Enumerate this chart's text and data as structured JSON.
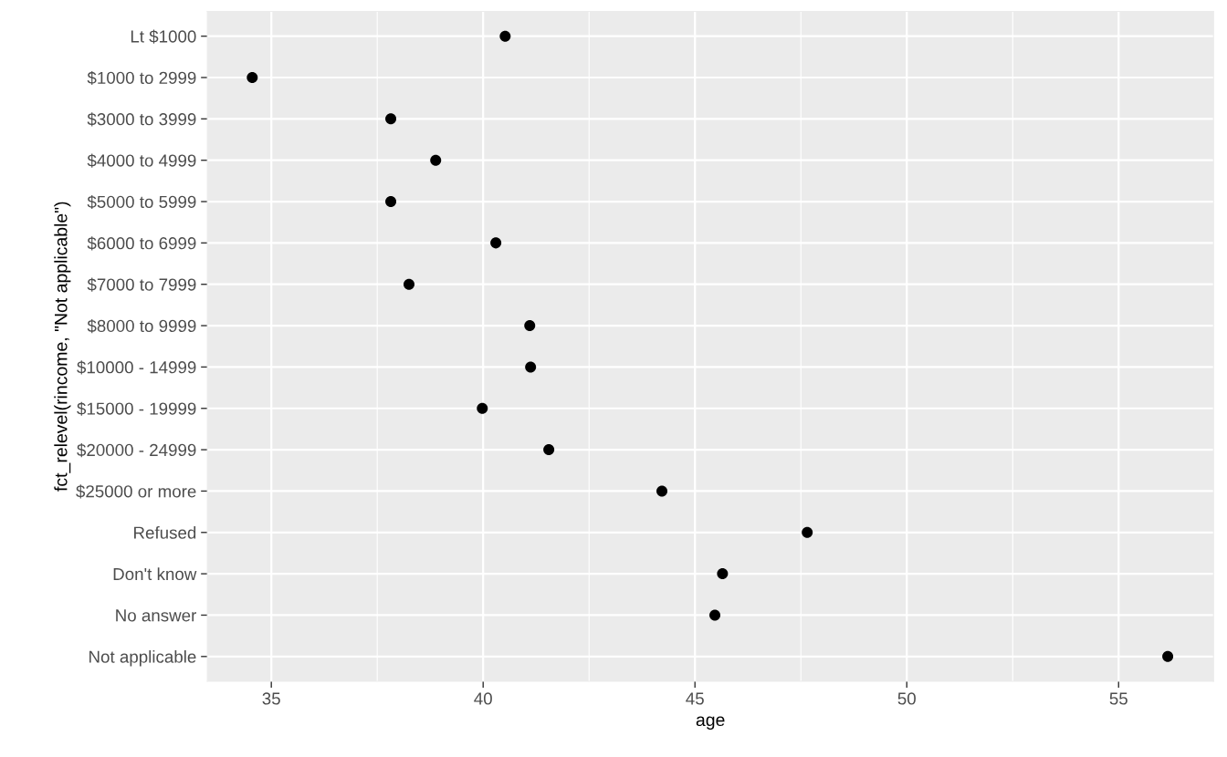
{
  "chart_data": {
    "type": "scatter",
    "orientation": "horizontal",
    "xlabel": "age",
    "ylabel": "fct_relevel(rincome, \"Not applicable\")",
    "categories": [
      "Lt $1000",
      "$1000 to 2999",
      "$3000 to 3999",
      "$4000 to 4999",
      "$5000 to 5999",
      "$6000 to 6999",
      "$7000 to 7999",
      "$8000 to 9999",
      "$10000 - 14999",
      "$15000 - 19999",
      "$20000 - 24999",
      "$25000 or more",
      "Refused",
      "Don't know",
      "No answer",
      "Not applicable"
    ],
    "series": [
      {
        "color": "#000000",
        "values": [
          40.52,
          34.55,
          37.82,
          38.88,
          37.82,
          40.3,
          38.25,
          41.1,
          41.12,
          39.98,
          41.55,
          44.22,
          47.65,
          45.65,
          45.47,
          56.16
        ]
      }
    ],
    "xlim": [
      33.49,
      57.24
    ],
    "xticks": [
      35,
      40,
      45,
      50,
      55
    ],
    "grid": true,
    "marker": "circle"
  }
}
